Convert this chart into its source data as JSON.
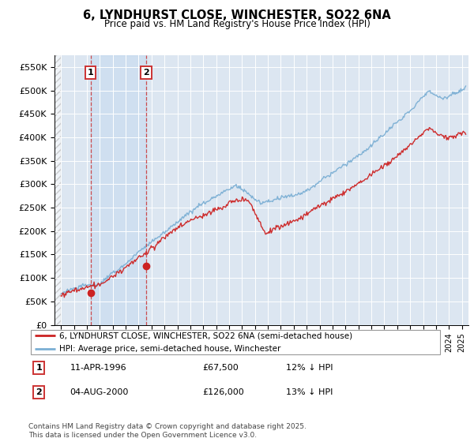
{
  "title": "6, LYNDHURST CLOSE, WINCHESTER, SO22 6NA",
  "subtitle": "Price paid vs. HM Land Registry's House Price Index (HPI)",
  "ylim": [
    0,
    575000
  ],
  "yticks": [
    0,
    50000,
    100000,
    150000,
    200000,
    250000,
    300000,
    350000,
    400000,
    450000,
    500000,
    550000
  ],
  "ytick_labels": [
    "£0",
    "£50K",
    "£100K",
    "£150K",
    "£200K",
    "£250K",
    "£300K",
    "£350K",
    "£400K",
    "£450K",
    "£500K",
    "£550K"
  ],
  "hpi_color": "#7bafd4",
  "price_color": "#cc2222",
  "vline_color": "#cc3333",
  "marker_color": "#cc2222",
  "plot_bg_color": "#dce6f1",
  "legend_label_price": "6, LYNDHURST CLOSE, WINCHESTER, SO22 6NA (semi-detached house)",
  "legend_label_hpi": "HPI: Average price, semi-detached house, Winchester",
  "annotation1_num": "1",
  "annotation1_date": "11-APR-1996",
  "annotation1_price": "£67,500",
  "annotation1_hpi": "12% ↓ HPI",
  "annotation2_num": "2",
  "annotation2_date": "04-AUG-2000",
  "annotation2_price": "£126,000",
  "annotation2_hpi": "13% ↓ HPI",
  "footer": "Contains HM Land Registry data © Crown copyright and database right 2025.\nThis data is licensed under the Open Government Licence v3.0.",
  "purchase1_x": 1996.28,
  "purchase1_y": 67500,
  "purchase2_x": 2000.59,
  "purchase2_y": 126000,
  "xmin": 1993.5,
  "xmax": 2025.5,
  "hatch_end": 1994.0
}
